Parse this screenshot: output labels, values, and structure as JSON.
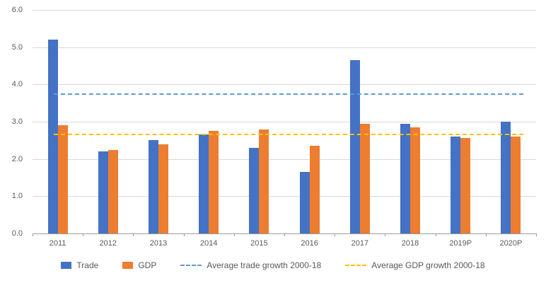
{
  "chart_data": {
    "type": "bar",
    "title": "",
    "xlabel": "",
    "ylabel": "",
    "categories": [
      "2011",
      "2012",
      "2013",
      "2014",
      "2015",
      "2016",
      "2017",
      "2018",
      "2019P",
      "2020P"
    ],
    "series": [
      {
        "name": "Trade",
        "color": "#4472C4",
        "values": [
          5.2,
          2.2,
          2.5,
          2.65,
          2.3,
          1.65,
          4.65,
          2.95,
          2.6,
          3.0
        ]
      },
      {
        "name": "GDP",
        "color": "#ED7D31",
        "values": [
          2.9,
          2.25,
          2.4,
          2.75,
          2.8,
          2.35,
          2.95,
          2.85,
          2.57,
          2.6
        ]
      }
    ],
    "reference_lines": [
      {
        "name": "Average trade growth 2000-18",
        "value": 3.75,
        "color": "#5B9BD5",
        "style": "dashed"
      },
      {
        "name": "Average GDP growth 2000-18",
        "value": 2.65,
        "color": "#FFC000",
        "style": "dashed"
      }
    ],
    "ylim": [
      0,
      6.0
    ],
    "ytick_step": 1.0,
    "ytick_labels": [
      "0.0",
      "1.0",
      "2.0",
      "3.0",
      "4.0",
      "5.0",
      "6.0"
    ],
    "grid": true,
    "legend_position": "bottom",
    "colors": {
      "gridline": "#d9d9d9",
      "axis_text": "#595959"
    }
  }
}
